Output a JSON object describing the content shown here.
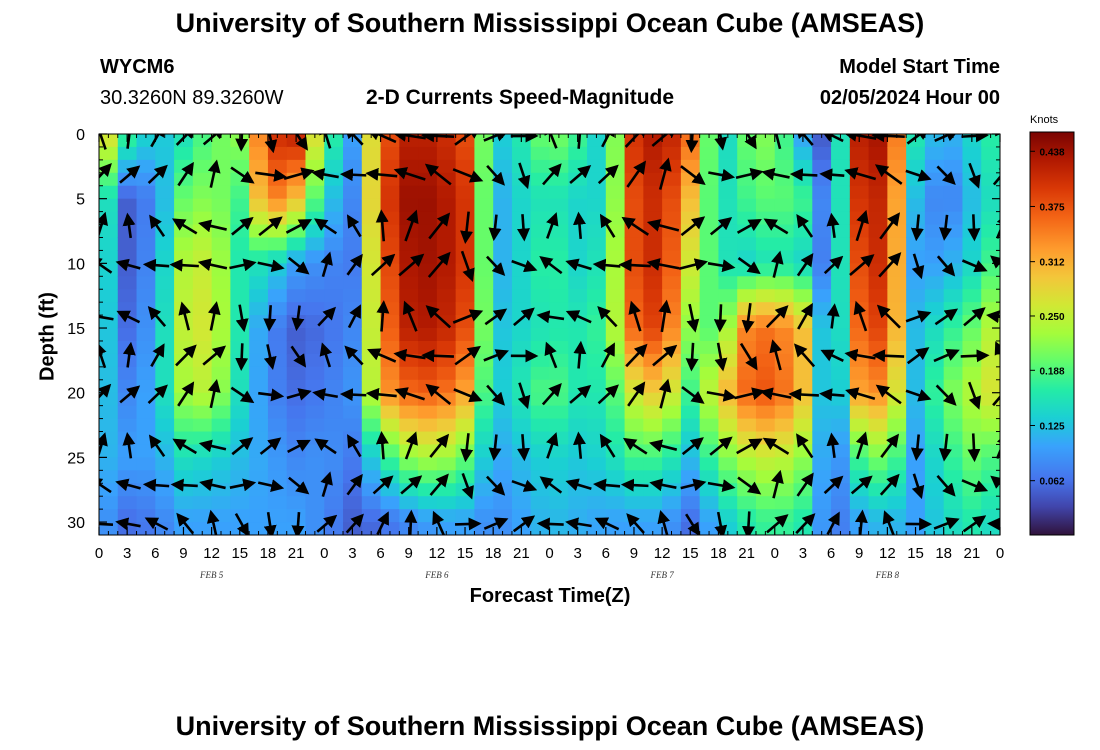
{
  "page": {
    "title": "University of Southern Mississippi Ocean Cube (AMSEAS)",
    "footer_title": "University of Southern Mississippi Ocean Cube (AMSEAS)",
    "station": "WYCM6",
    "coords": "30.3260N  89.3260W",
    "subtitle": "2-D Currents Speed-Magnitude",
    "model_start_label": "Model Start Time",
    "model_start_value": "02/05/2024 Hour 00"
  },
  "chart_data": {
    "type": "heatmap",
    "xlabel": "Forecast Time(Z)",
    "ylabel": "Depth (ft)",
    "x_tick_labels": [
      "0",
      "3",
      "6",
      "9",
      "12",
      "15",
      "18",
      "21",
      "0",
      "3",
      "6",
      "9",
      "12",
      "15",
      "18",
      "21",
      "0",
      "3",
      "6",
      "9",
      "12",
      "15",
      "18",
      "21",
      "0",
      "3",
      "6",
      "9",
      "12",
      "15",
      "18",
      "21",
      "0"
    ],
    "x_range_hours": [
      0,
      96
    ],
    "date_labels": [
      {
        "label": "FEB 5",
        "hour": 12
      },
      {
        "label": "FEB 6",
        "hour": 36
      },
      {
        "label": "FEB 7",
        "hour": 60
      },
      {
        "label": "FEB 8",
        "hour": 84
      }
    ],
    "y_ticks": [
      0,
      5,
      10,
      15,
      20,
      25,
      30
    ],
    "y_range_ft": [
      0,
      31
    ],
    "y_inverted": true,
    "colorbar": {
      "title": "Knots",
      "ticks": [
        "0.438",
        "0.375",
        "0.312",
        "0.250",
        "0.188",
        "0.125",
        "0.062"
      ],
      "range": [
        0,
        0.46
      ]
    },
    "speed_field_knots": {
      "hours": [
        0,
        3,
        6,
        9,
        12,
        15,
        18,
        21,
        24,
        27,
        30,
        33,
        36,
        39,
        42,
        45,
        48,
        51,
        54,
        57,
        60,
        63,
        66,
        69,
        72,
        75,
        78,
        81,
        84,
        87,
        90,
        93,
        96
      ],
      "depths_ft": [
        0,
        5,
        10,
        15,
        20,
        25,
        30
      ],
      "values": [
        [
          0.32,
          0.2,
          0.18,
          0.16,
          0.14,
          0.12,
          0.1
        ],
        [
          0.18,
          0.05,
          0.05,
          0.06,
          0.08,
          0.1,
          0.06
        ],
        [
          0.12,
          0.08,
          0.09,
          0.1,
          0.11,
          0.1,
          0.07
        ],
        [
          0.15,
          0.2,
          0.24,
          0.25,
          0.23,
          0.15,
          0.1
        ],
        [
          0.2,
          0.22,
          0.26,
          0.27,
          0.25,
          0.14,
          0.1
        ],
        [
          0.22,
          0.18,
          0.16,
          0.16,
          0.15,
          0.12,
          0.1
        ],
        [
          0.4,
          0.36,
          0.15,
          0.08,
          0.08,
          0.1,
          0.1
        ],
        [
          0.42,
          0.3,
          0.1,
          0.05,
          0.06,
          0.08,
          0.1
        ],
        [
          0.2,
          0.14,
          0.08,
          0.06,
          0.07,
          0.09,
          0.08
        ],
        [
          0.1,
          0.08,
          0.07,
          0.08,
          0.09,
          0.07,
          0.05
        ],
        [
          0.36,
          0.38,
          0.36,
          0.34,
          0.32,
          0.16,
          0.06
        ],
        [
          0.42,
          0.44,
          0.43,
          0.42,
          0.36,
          0.22,
          0.08
        ],
        [
          0.42,
          0.44,
          0.44,
          0.43,
          0.37,
          0.24,
          0.1
        ],
        [
          0.38,
          0.4,
          0.4,
          0.38,
          0.32,
          0.2,
          0.1
        ],
        [
          0.12,
          0.1,
          0.1,
          0.12,
          0.12,
          0.1,
          0.08
        ],
        [
          0.16,
          0.14,
          0.14,
          0.14,
          0.16,
          0.12,
          0.1
        ],
        [
          0.22,
          0.16,
          0.18,
          0.16,
          0.2,
          0.14,
          0.12
        ],
        [
          0.18,
          0.14,
          0.14,
          0.16,
          0.16,
          0.13,
          0.11
        ],
        [
          0.12,
          0.14,
          0.16,
          0.18,
          0.16,
          0.14,
          0.1
        ],
        [
          0.4,
          0.38,
          0.38,
          0.36,
          0.26,
          0.18,
          0.1
        ],
        [
          0.44,
          0.42,
          0.42,
          0.4,
          0.3,
          0.18,
          0.1
        ],
        [
          0.36,
          0.3,
          0.26,
          0.22,
          0.18,
          0.12,
          0.06
        ],
        [
          0.12,
          0.14,
          0.16,
          0.18,
          0.28,
          0.2,
          0.12
        ],
        [
          0.2,
          0.18,
          0.14,
          0.34,
          0.36,
          0.24,
          0.16
        ],
        [
          0.22,
          0.2,
          0.16,
          0.36,
          0.38,
          0.26,
          0.18
        ],
        [
          0.1,
          0.18,
          0.14,
          0.3,
          0.3,
          0.22,
          0.16
        ],
        [
          0.02,
          0.03,
          0.04,
          0.04,
          0.04,
          0.05,
          0.06
        ],
        [
          0.42,
          0.4,
          0.38,
          0.36,
          0.32,
          0.18,
          0.1
        ],
        [
          0.44,
          0.42,
          0.42,
          0.4,
          0.34,
          0.22,
          0.12
        ],
        [
          0.16,
          0.12,
          0.1,
          0.12,
          0.12,
          0.1,
          0.1
        ],
        [
          0.1,
          0.06,
          0.1,
          0.16,
          0.2,
          0.16,
          0.14
        ],
        [
          0.14,
          0.12,
          0.14,
          0.2,
          0.24,
          0.2,
          0.16
        ],
        [
          0.18,
          0.16,
          0.2,
          0.26,
          0.28,
          0.18,
          0.14
        ]
      ]
    },
    "vector_arrows": {
      "hours_step": 3,
      "depths_ft": [
        0,
        3,
        7,
        10,
        14,
        17,
        20,
        24,
        27,
        30
      ],
      "description": "current direction arrows at each grid point"
    }
  }
}
